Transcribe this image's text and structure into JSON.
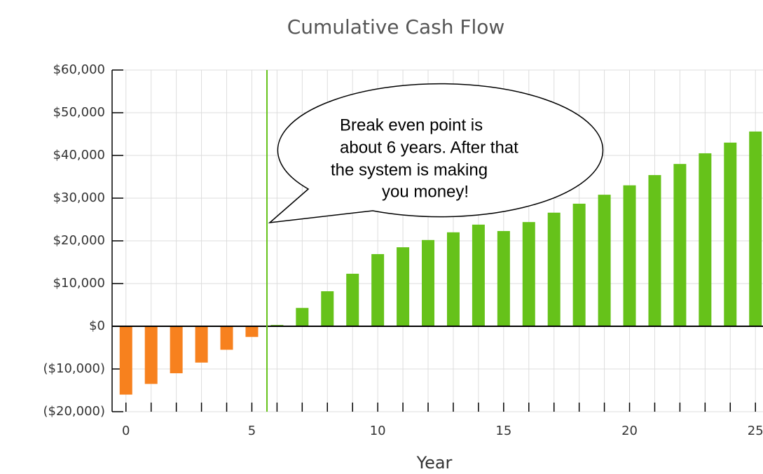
{
  "chart_data": {
    "type": "bar",
    "title": "Cumulative Cash Flow",
    "x_label": "Year",
    "x": [
      0,
      1,
      2,
      3,
      4,
      5,
      6,
      7,
      8,
      9,
      10,
      11,
      12,
      13,
      14,
      15,
      16,
      17,
      18,
      19,
      20,
      21,
      22,
      23,
      24,
      25
    ],
    "values": [
      -16000,
      -13500,
      -11000,
      -8500,
      -5500,
      -2500,
      300,
      4300,
      8200,
      12300,
      16900,
      18500,
      20200,
      22000,
      23800,
      22300,
      24400,
      26600,
      28700,
      30800,
      33000,
      35400,
      38000,
      40500,
      43000,
      45600
    ],
    "positive_color": "#66c21a",
    "negative_color": "#f7811e",
    "xlim": [
      -0.55,
      25.3
    ],
    "xticks": [
      0,
      5,
      10,
      15,
      20,
      25
    ],
    "ylim": [
      -20000,
      60000
    ],
    "yticks": [
      {
        "value": -20000,
        "label": "($20,000)"
      },
      {
        "value": -10000,
        "label": "($10,000)"
      },
      {
        "value": 0,
        "label": "$0"
      },
      {
        "value": 10000,
        "label": "$10,000"
      },
      {
        "value": 20000,
        "label": "$20,000"
      },
      {
        "value": 30000,
        "label": "$30,000"
      },
      {
        "value": 40000,
        "label": "$40,000"
      },
      {
        "value": 50000,
        "label": "$50,000"
      },
      {
        "value": 60000,
        "label": "$60,000"
      }
    ],
    "grid": true,
    "break_even_line": {
      "x": 5.6,
      "color": "#66c21a"
    },
    "annotation": [
      "Break even point is",
      "about 6 years.  After that",
      "the system is making",
      "you money!"
    ]
  }
}
